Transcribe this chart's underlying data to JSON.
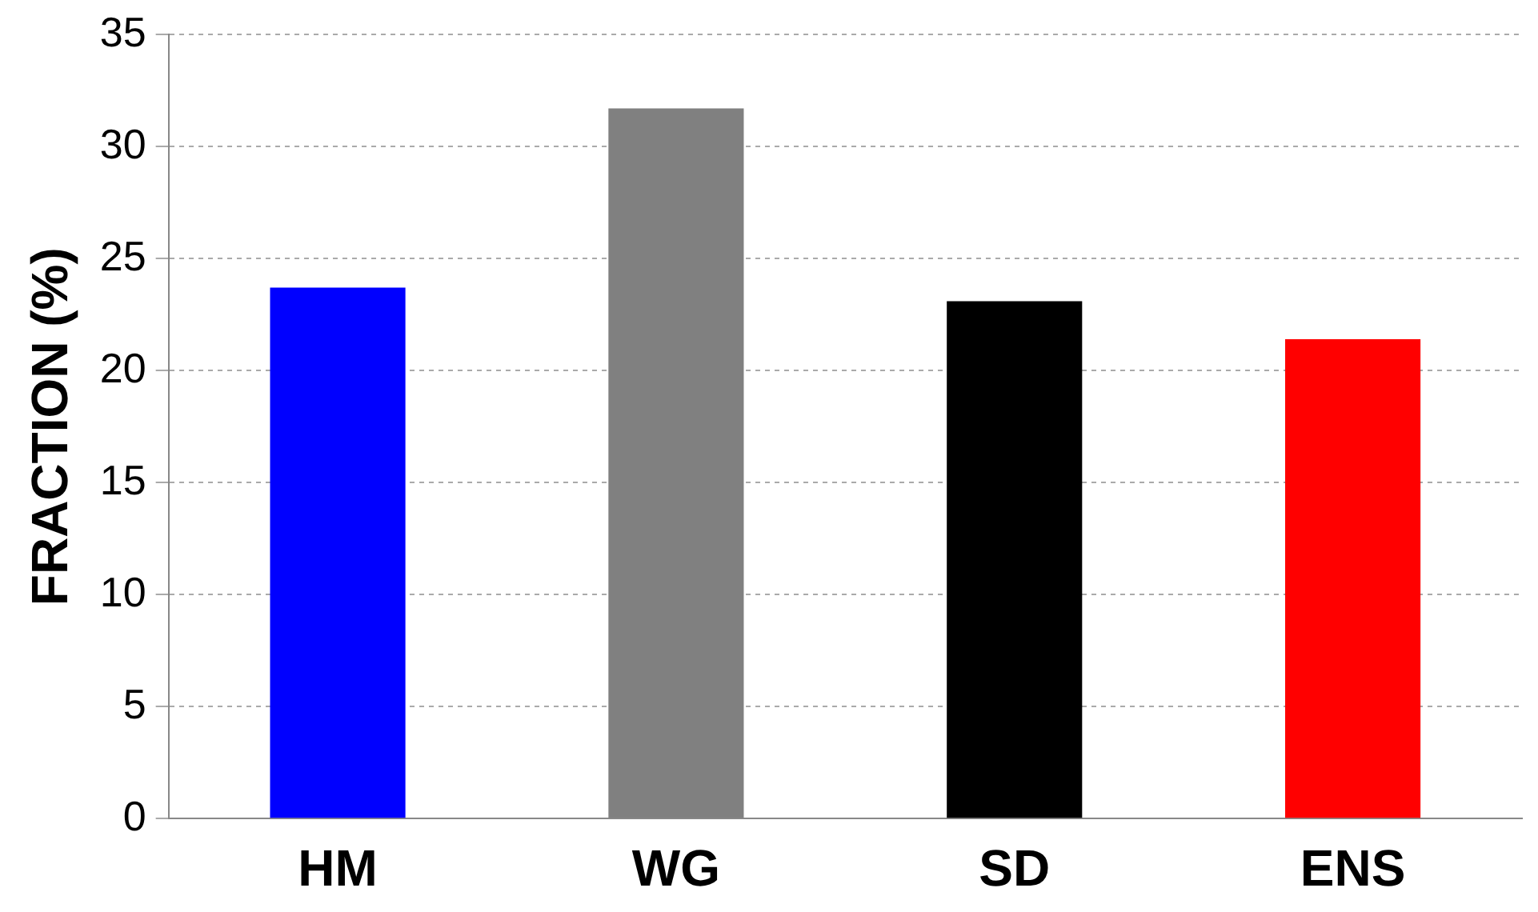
{
  "chart_data": {
    "type": "bar",
    "ylabel": "FRACTION (%)",
    "categories": [
      "HM",
      "WG",
      "SD",
      "ENS"
    ],
    "values": [
      23.7,
      31.7,
      23.1,
      21.4
    ],
    "colors": [
      "#0000ff",
      "#808080",
      "#000000",
      "#ff0000"
    ],
    "ylim": [
      0,
      35
    ],
    "yticks": [
      0,
      5,
      10,
      15,
      20,
      25,
      30,
      35
    ],
    "grid": "y",
    "legend": false
  }
}
